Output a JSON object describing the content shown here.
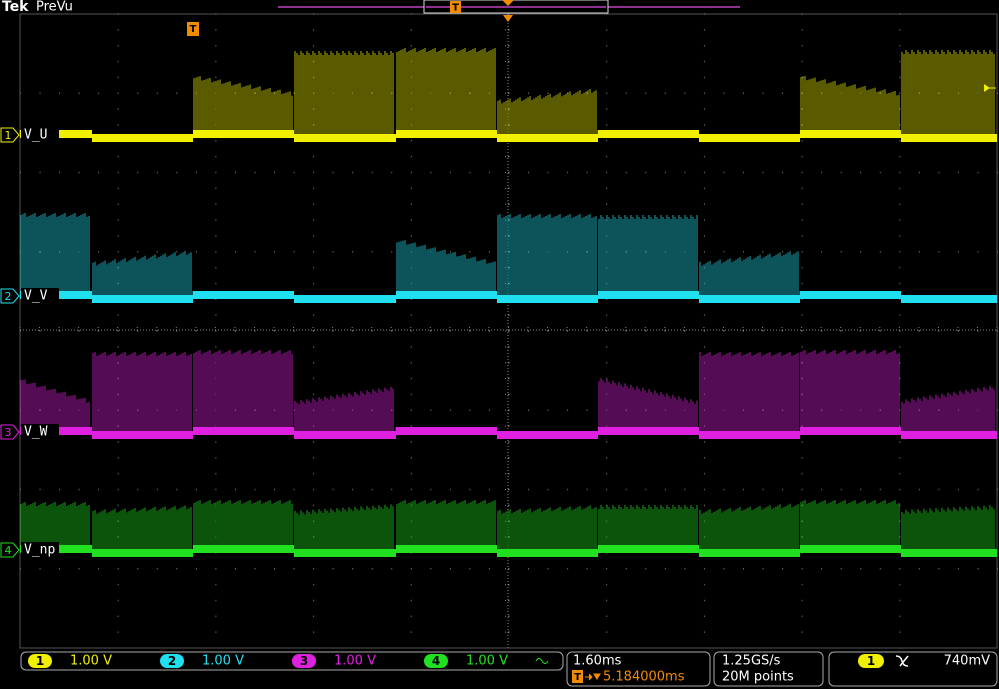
{
  "header": {
    "brand": "Tek",
    "mode": "PreVu"
  },
  "trigger_marker": "T",
  "channels": [
    {
      "number": "1",
      "label": "V_U",
      "scale": "1.00 V",
      "color": "#f0f000"
    },
    {
      "number": "2",
      "label": "V_V",
      "scale": "1.00 V",
      "color": "#20e0f0"
    },
    {
      "number": "3",
      "label": "V_W",
      "scale": "1.00 V",
      "color": "#e020e0"
    },
    {
      "number": "4",
      "label": "V_np",
      "scale": "1.00 V",
      "color": "#20e020"
    }
  ],
  "timebase": {
    "scale": "1.60ms",
    "trigger_position": "5.184000ms"
  },
  "acquisition": {
    "sample_rate": "1.25GS/s",
    "record_length": "20M points"
  },
  "trigger": {
    "source": "1",
    "level": "740mV"
  }
}
